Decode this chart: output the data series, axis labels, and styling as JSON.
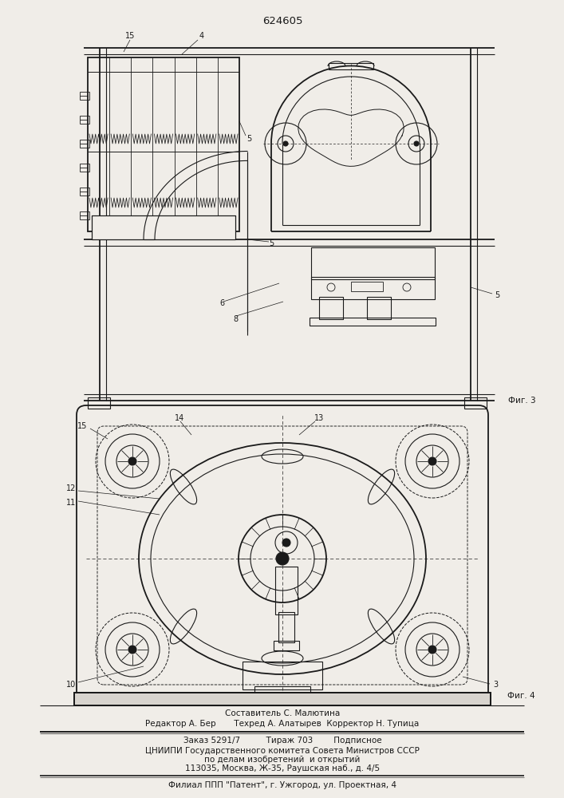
{
  "patent_number": "624605",
  "fig3_label": "Фиг. 3",
  "fig4_label": "Фиг. 4",
  "bg_color": "#f0ede8",
  "line_color": "#1a1a1a",
  "footer_line1": "Составитель С. Малютина",
  "footer_line2": "Редактор А. Бер       Техред А. Алатырев  Корректор Н. Тупица",
  "footer_line3": "Заказ 5291/7          Тираж 703        Подписное",
  "footer_line4": "ЦНИИПИ Государственного комитета Совета Министров СССР",
  "footer_line5": "по делам изобретений  и открытий",
  "footer_line6": "113035, Москва, Ж-35, Раушская наб., д. 4/5",
  "footer_line7": "Филиал ППП \"Патент\", г. Ужгород, ул. Проектная, 4"
}
